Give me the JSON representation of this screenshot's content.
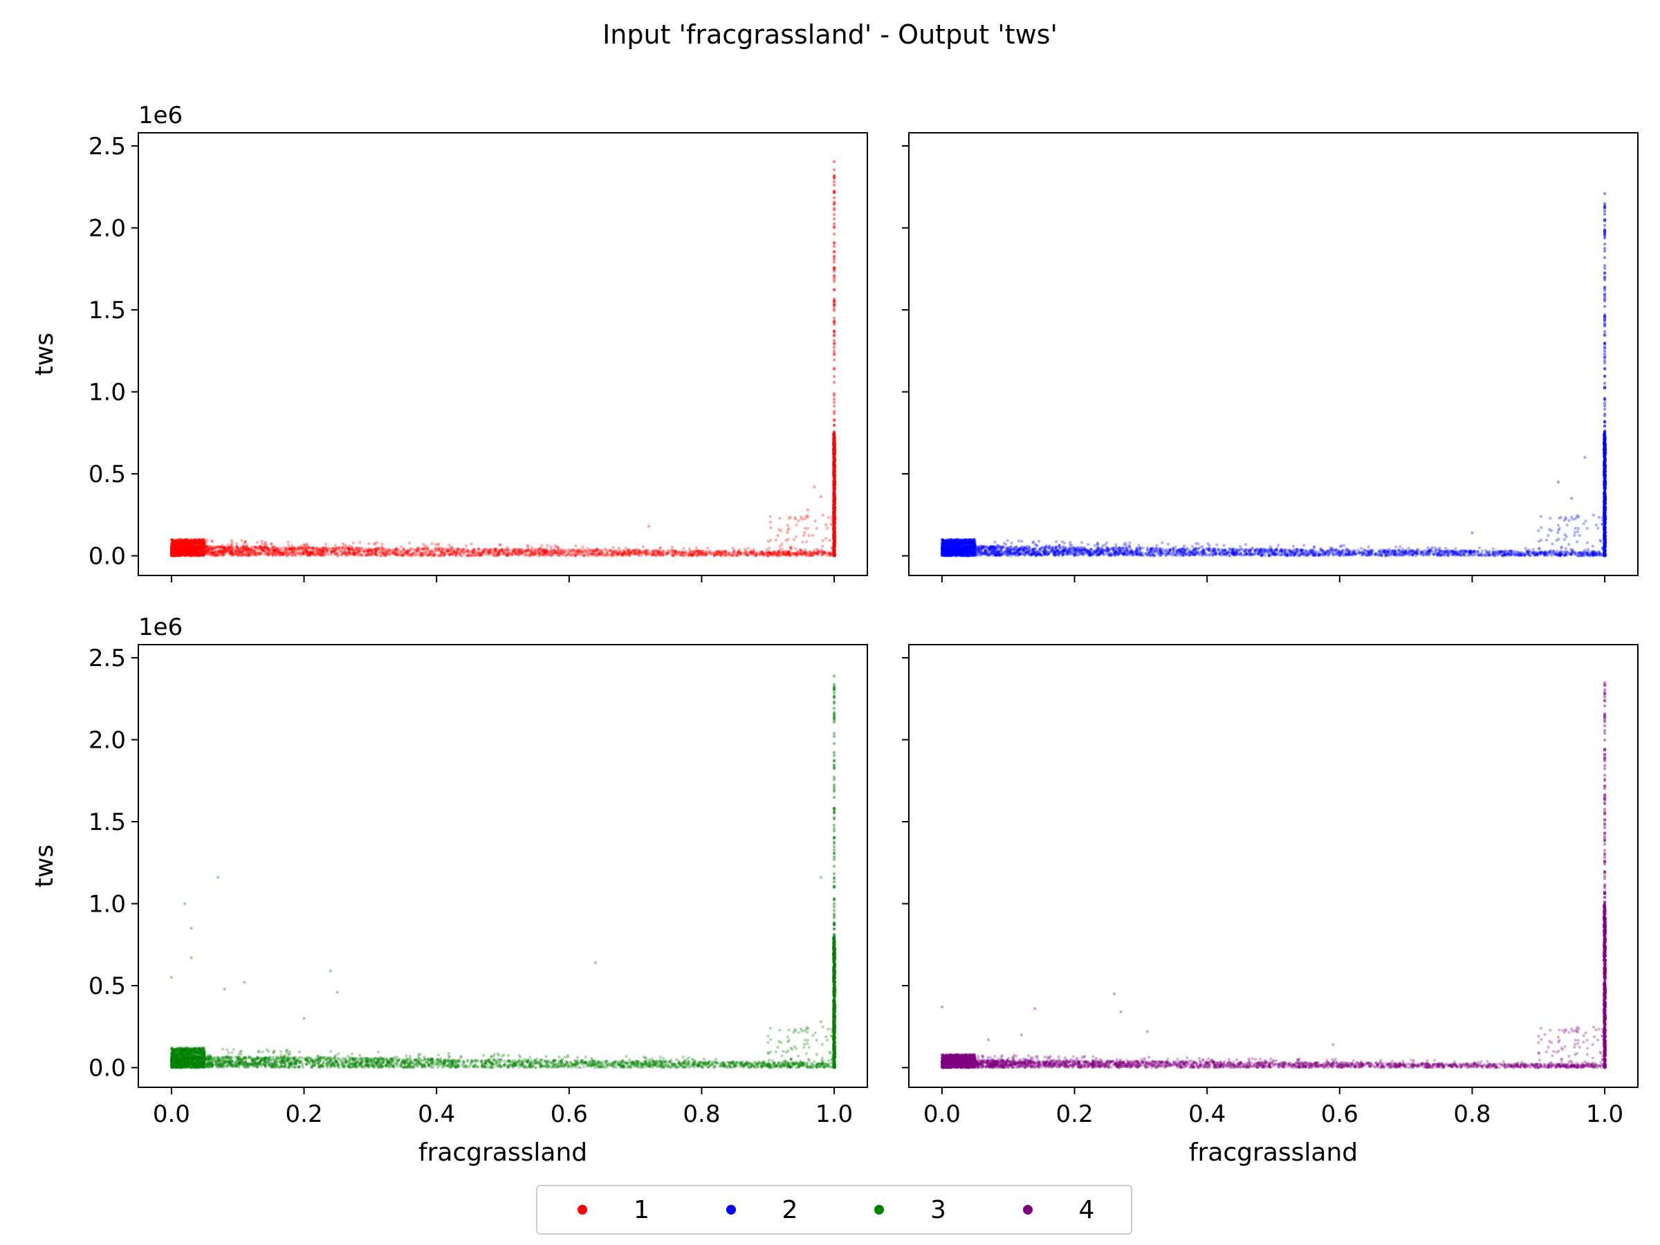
{
  "title": "Input 'fracgrassland' - Output 'tws'",
  "legend": [
    {
      "label": "1",
      "color": "#ff0000"
    },
    {
      "label": "2",
      "color": "#0000ff"
    },
    {
      "label": "3",
      "color": "#008000"
    },
    {
      "label": "4",
      "color": "#800080"
    }
  ],
  "chart_data": [
    {
      "type": "scatter",
      "series": [
        {
          "name": "1",
          "color": "#ff0000"
        }
      ],
      "xlabel": "",
      "ylabel": "tws",
      "offset_text": "1e6",
      "xlim": [
        -0.05,
        1.05
      ],
      "ylim": [
        -0.12,
        2.58
      ],
      "xticks": [
        0.0,
        0.2,
        0.4,
        0.6,
        0.8,
        1.0
      ],
      "yticks": [
        0.0,
        0.5,
        1.0,
        1.5,
        2.0,
        2.5
      ],
      "xticklabels_visible": false,
      "yticklabels_visible": true,
      "points_summary": {
        "baseline_y_range": [
          0.0,
          0.1
        ],
        "vertical_cluster_at_x": 1.0,
        "vertical_cluster_y_max": 2.45,
        "dense_to_y": 0.75,
        "scattered_outliers": [
          [
            0.72,
            0.18
          ],
          [
            0.97,
            0.42
          ],
          [
            0.98,
            0.36
          ],
          [
            0.96,
            0.28
          ]
        ]
      }
    },
    {
      "type": "scatter",
      "series": [
        {
          "name": "2",
          "color": "#0000ff"
        }
      ],
      "xlabel": "",
      "ylabel": "",
      "xlim": [
        -0.05,
        1.05
      ],
      "ylim": [
        -0.12,
        2.58
      ],
      "xticks": [
        0.0,
        0.2,
        0.4,
        0.6,
        0.8,
        1.0
      ],
      "yticks": [
        0.0,
        0.5,
        1.0,
        1.5,
        2.0,
        2.5
      ],
      "xticklabels_visible": false,
      "yticklabels_visible": false,
      "points_summary": {
        "baseline_y_range": [
          0.0,
          0.1
        ],
        "vertical_cluster_at_x": 1.0,
        "vertical_cluster_y_max": 2.25,
        "dense_to_y": 0.75,
        "scattered_outliers": [
          [
            0.8,
            0.14
          ],
          [
            0.93,
            0.45
          ],
          [
            0.95,
            0.35
          ],
          [
            0.97,
            0.6
          ]
        ]
      }
    },
    {
      "type": "scatter",
      "series": [
        {
          "name": "3",
          "color": "#008000"
        }
      ],
      "xlabel": "fracgrassland",
      "ylabel": "tws",
      "offset_text": "1e6",
      "xlim": [
        -0.05,
        1.05
      ],
      "ylim": [
        -0.12,
        2.58
      ],
      "xticks": [
        0.0,
        0.2,
        0.4,
        0.6,
        0.8,
        1.0
      ],
      "yticks": [
        0.0,
        0.5,
        1.0,
        1.5,
        2.0,
        2.5
      ],
      "xticklabels": [
        "0.0",
        "0.2",
        "0.4",
        "0.6",
        "0.8",
        "1.0"
      ],
      "xticklabels_visible": true,
      "yticklabels_visible": true,
      "points_summary": {
        "baseline_y_range": [
          0.0,
          0.12
        ],
        "vertical_cluster_at_x": 1.0,
        "vertical_cluster_y_max": 2.45,
        "dense_to_y": 0.8,
        "scattered_outliers": [
          [
            0.0,
            0.55
          ],
          [
            0.02,
            1.0
          ],
          [
            0.03,
            0.85
          ],
          [
            0.03,
            0.67
          ],
          [
            0.07,
            1.16
          ],
          [
            0.08,
            0.48
          ],
          [
            0.11,
            0.52
          ],
          [
            0.24,
            0.59
          ],
          [
            0.25,
            0.46
          ],
          [
            0.64,
            0.64
          ],
          [
            0.2,
            0.3
          ],
          [
            0.98,
            1.16
          ],
          [
            0.98,
            0.28
          ]
        ]
      }
    },
    {
      "type": "scatter",
      "series": [
        {
          "name": "4",
          "color": "#800080"
        }
      ],
      "xlabel": "fracgrassland",
      "ylabel": "",
      "xlim": [
        -0.05,
        1.05
      ],
      "ylim": [
        -0.12,
        2.58
      ],
      "xticks": [
        0.0,
        0.2,
        0.4,
        0.6,
        0.8,
        1.0
      ],
      "yticks": [
        0.0,
        0.5,
        1.0,
        1.5,
        2.0,
        2.5
      ],
      "xticklabels": [
        "0.0",
        "0.2",
        "0.4",
        "0.6",
        "0.8",
        "1.0"
      ],
      "xticklabels_visible": true,
      "yticklabels_visible": false,
      "points_summary": {
        "baseline_y_range": [
          0.0,
          0.08
        ],
        "vertical_cluster_at_x": 1.0,
        "vertical_cluster_y_max": 2.4,
        "dense_to_y": 1.0,
        "scattered_outliers": [
          [
            0.0,
            0.37
          ],
          [
            0.12,
            0.2
          ],
          [
            0.14,
            0.36
          ],
          [
            0.26,
            0.45
          ],
          [
            0.27,
            0.34
          ],
          [
            0.07,
            0.17
          ],
          [
            0.31,
            0.22
          ],
          [
            0.59,
            0.14
          ]
        ]
      }
    }
  ],
  "ytick_labels": [
    "0.0",
    "0.5",
    "1.0",
    "1.5",
    "2.0",
    "2.5"
  ]
}
